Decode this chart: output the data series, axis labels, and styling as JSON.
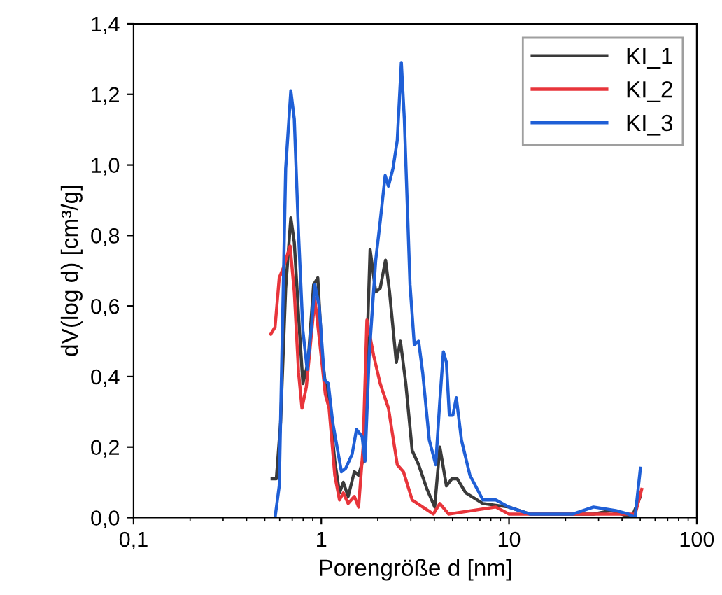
{
  "chart_data": {
    "type": "line",
    "xlabel": "Porengröße d [nm]",
    "ylabel": "dV(log d) [cm³/g]",
    "log": "x",
    "xlim": [
      0.1,
      100
    ],
    "xticks": [
      {
        "value": 0.1,
        "label": "0,1"
      },
      1,
      10,
      100
    ],
    "ylim": [
      0,
      1.4
    ],
    "yticks": [
      {
        "value": 0,
        "label": "0,0"
      },
      {
        "value": 0.2,
        "label": "0,2"
      },
      {
        "value": 0.4,
        "label": "0,4"
      },
      {
        "value": 0.6,
        "label": "0,6"
      },
      {
        "value": 0.8,
        "label": "0,8"
      },
      {
        "value": 1.0,
        "label": "1,0"
      },
      {
        "value": 1.2,
        "label": "1,2"
      },
      {
        "value": 1.4,
        "label": "1,4"
      }
    ],
    "grid": false,
    "legend": "top right",
    "marker": "none",
    "line_style": "solid",
    "series": [
      {
        "name": "KI_1",
        "color": "#3a3a3a",
        "x": [
          0.547,
          0.576,
          0.607,
          0.646,
          0.688,
          0.718,
          0.765,
          0.798,
          0.85,
          0.91,
          0.958,
          1.01,
          1.05,
          1.1,
          1.18,
          1.25,
          1.31,
          1.39,
          1.5,
          1.58,
          1.68,
          1.82,
          1.95,
          2.06,
          2.2,
          2.31,
          2.51,
          2.64,
          2.82,
          3.05,
          3.3,
          3.66,
          4.02,
          4.28,
          4.64,
          4.96,
          5.3,
          5.88,
          7.26,
          9.96,
          12.9,
          28.2,
          35,
          45,
          50.1
        ],
        "values": [
          0.11,
          0.11,
          0.27,
          0.65,
          0.85,
          0.78,
          0.53,
          0.38,
          0.44,
          0.66,
          0.68,
          0.46,
          0.38,
          0.33,
          0.16,
          0.07,
          0.1,
          0.06,
          0.13,
          0.12,
          0.17,
          0.76,
          0.64,
          0.65,
          0.73,
          0.64,
          0.44,
          0.5,
          0.38,
          0.19,
          0.15,
          0.08,
          0.03,
          0.2,
          0.09,
          0.11,
          0.11,
          0.07,
          0.04,
          0.03,
          0.01,
          0.01,
          0.02,
          0.0,
          0.06
        ]
      },
      {
        "name": "KI_2",
        "color": "#e8353b",
        "x": [
          0.538,
          0.567,
          0.597,
          0.63,
          0.682,
          0.718,
          0.757,
          0.789,
          0.832,
          0.924,
          0.984,
          1.05,
          1.1,
          1.18,
          1.25,
          1.31,
          1.39,
          1.5,
          1.58,
          1.67,
          1.75,
          1.9,
          2.06,
          2.28,
          2.54,
          2.74,
          3.05,
          3.47,
          3.95,
          4.28,
          4.77,
          8.5,
          10,
          28,
          37,
          47,
          50.9
        ],
        "values": [
          0.52,
          0.54,
          0.68,
          0.71,
          0.77,
          0.64,
          0.41,
          0.31,
          0.37,
          0.62,
          0.49,
          0.35,
          0.31,
          0.12,
          0.05,
          0.07,
          0.04,
          0.06,
          0.03,
          0.2,
          0.56,
          0.46,
          0.38,
          0.31,
          0.15,
          0.13,
          0.05,
          0.03,
          0.01,
          0.04,
          0.01,
          0.03,
          0.01,
          0.01,
          0.01,
          0.01,
          0.08
        ]
      },
      {
        "name": "KI_3",
        "color": "#1f5fd6",
        "x": [
          0.567,
          0.597,
          0.646,
          0.688,
          0.718,
          0.757,
          0.798,
          0.841,
          0.886,
          0.924,
          0.974,
          1.04,
          1.09,
          1.15,
          1.28,
          1.35,
          1.46,
          1.54,
          1.65,
          1.71,
          1.8,
          1.95,
          2.06,
          2.19,
          2.28,
          2.41,
          2.54,
          2.67,
          2.77,
          2.97,
          3.13,
          3.3,
          3.47,
          3.76,
          4.07,
          4.28,
          4.47,
          4.64,
          4.81,
          5.02,
          5.24,
          5.58,
          6.19,
          7.26,
          8.51,
          9.96,
          12.9,
          21.9,
          28.2,
          37,
          43.3,
          46.9,
          50.1
        ],
        "values": [
          0.0,
          0.09,
          0.99,
          1.21,
          1.13,
          0.8,
          0.53,
          0.42,
          0.54,
          0.66,
          0.6,
          0.39,
          0.38,
          0.27,
          0.13,
          0.14,
          0.18,
          0.25,
          0.23,
          0.16,
          0.46,
          0.73,
          0.84,
          0.97,
          0.94,
          0.99,
          1.07,
          1.29,
          1.13,
          0.66,
          0.49,
          0.5,
          0.41,
          0.22,
          0.15,
          0.33,
          0.47,
          0.44,
          0.29,
          0.29,
          0.34,
          0.22,
          0.12,
          0.05,
          0.05,
          0.03,
          0.01,
          0.01,
          0.03,
          0.02,
          0.01,
          0.0,
          0.14
        ]
      }
    ]
  }
}
